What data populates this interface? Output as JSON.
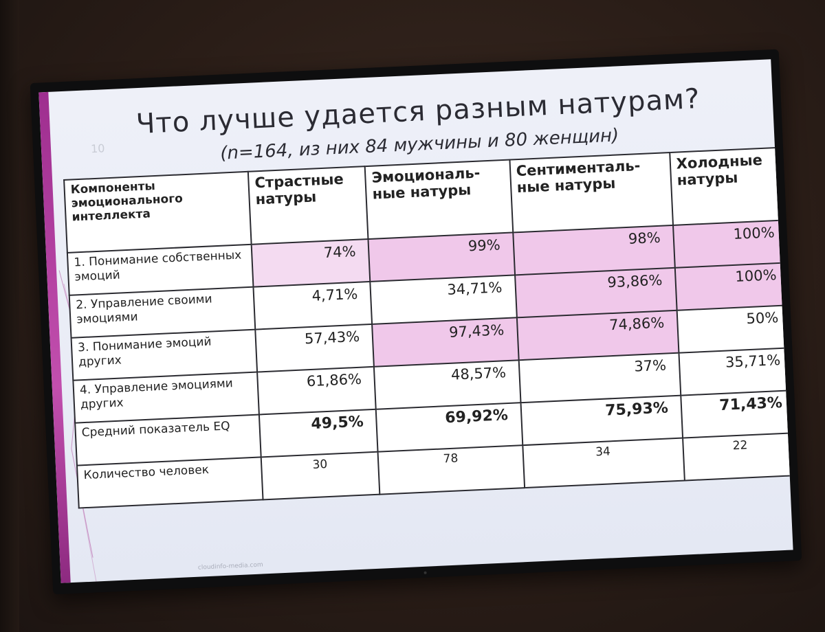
{
  "slide": {
    "number": "10",
    "title": "Что лучше удается разным натурам?",
    "subtitle": "(n=164, из них 84 мужчины и 80 женщин)",
    "footer_url": "cloudinfo-media.com"
  },
  "table": {
    "header": {
      "components": "Компоненты эмоционального интеллекта",
      "passionate": "Страстные натуры",
      "emotional": "Эмоциональ-ные натуры",
      "sentimental": "Сентименталь-ные натуры",
      "cold": "Холодные натуры"
    },
    "rows": [
      {
        "label": "1. Понимание собственных эмоций",
        "passionate": "74%",
        "emotional": "99%",
        "sentimental": "98%",
        "cold": "100%"
      },
      {
        "label": "2. Управление своими эмоциями",
        "passionate": "4,71%",
        "emotional": "34,71%",
        "sentimental": "93,86%",
        "cold": "100%"
      },
      {
        "label": "3. Понимание эмоций других",
        "passionate": "57,43%",
        "emotional": "97,43%",
        "sentimental": "74,86%",
        "cold": "50%"
      },
      {
        "label": "4. Управление эмоциями других",
        "passionate": "61,86%",
        "emotional": "48,57%",
        "sentimental": "37%",
        "cold": "35,71%"
      },
      {
        "label": "Средний показатель EQ",
        "passionate": "49,5%",
        "emotional": "69,92%",
        "sentimental": "75,93%",
        "cold": "71,43%"
      },
      {
        "label": "Количество человек",
        "passionate": "30",
        "emotional": "78",
        "sentimental": "34",
        "cold": "22"
      }
    ]
  },
  "colors": {
    "highlight": "#f0c8ea",
    "accent": "#9e2e8f",
    "screen_bg": "#eef0f8"
  }
}
